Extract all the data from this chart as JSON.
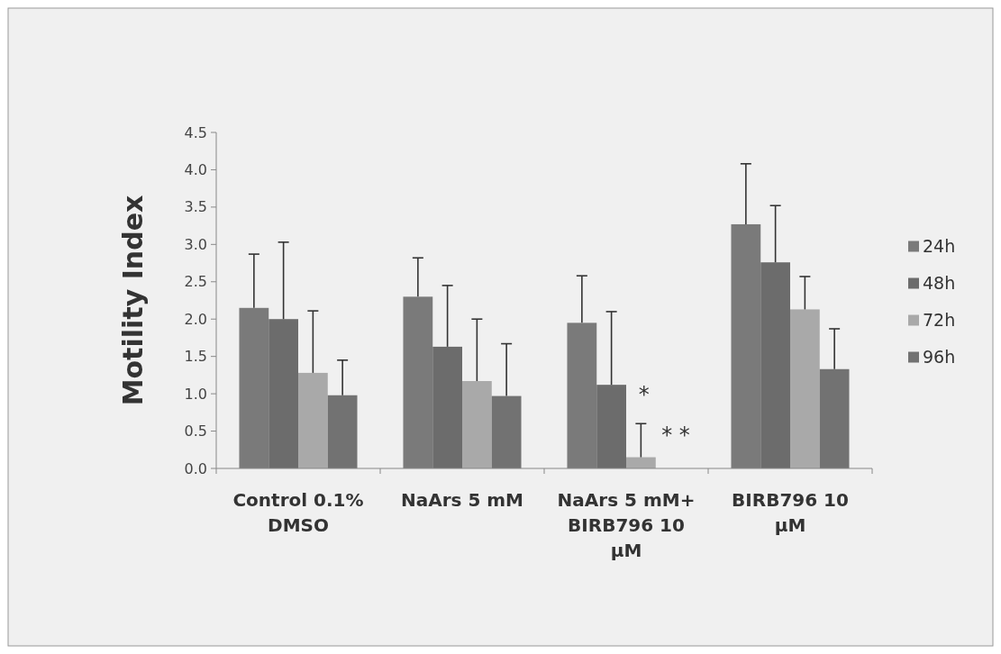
{
  "chart_data": {
    "type": "bar",
    "ylabel": "Motility Index",
    "categories": [
      "Control 0.1% DMSO",
      "NaArs 5 mM",
      "NaArs 5 mM+ BIRB796 10 μM",
      "BIRB796 10 μM"
    ],
    "series": [
      {
        "name": "24h",
        "color": "#7a7a7a",
        "values": [
          2.15,
          2.3,
          1.95,
          3.27
        ],
        "errors": [
          [
            2.15,
            2.87
          ],
          [
            2.3,
            2.82
          ],
          [
            1.95,
            2.58
          ],
          [
            3.27,
            4.08
          ]
        ]
      },
      {
        "name": "48h",
        "color": "#6c6c6c",
        "values": [
          2.0,
          1.63,
          1.12,
          2.76
        ],
        "errors": [
          [
            2.0,
            3.03
          ],
          [
            1.63,
            2.45
          ],
          [
            1.12,
            2.1
          ],
          [
            2.76,
            3.52
          ]
        ]
      },
      {
        "name": "72h",
        "color": "#a9a9a9",
        "values": [
          1.28,
          1.17,
          0.15,
          2.13
        ],
        "errors": [
          [
            1.28,
            2.11
          ],
          [
            1.17,
            2.0
          ],
          [
            0.15,
            0.6
          ],
          [
            2.13,
            2.57
          ]
        ]
      },
      {
        "name": "96h",
        "color": "#727272",
        "values": [
          0.98,
          0.97,
          0,
          1.33
        ],
        "errors": [
          [
            0.98,
            1.45
          ],
          [
            0.97,
            1.67
          ],
          null,
          [
            1.33,
            1.87
          ]
        ]
      }
    ],
    "ylim": [
      0,
      4.5
    ],
    "yticks": [
      {
        "value": 0,
        "label": "0.0"
      },
      {
        "value": 0.5,
        "label": "0.5"
      },
      {
        "value": 1,
        "label": "1.0"
      },
      {
        "value": 1.5,
        "label": "1.5"
      },
      {
        "value": 2,
        "label": "2.0"
      },
      {
        "value": 2.5,
        "label": "2.5"
      },
      {
        "value": 3,
        "label": "3.0"
      },
      {
        "value": 3.5,
        "label": "3.5"
      },
      {
        "value": 4,
        "label": "4.0"
      },
      {
        "value": 4.5,
        "label": "4.5"
      }
    ],
    "annotations": [
      {
        "text": "*",
        "x": "NaArs 5 mM+ BIRB796 10 μM",
        "y": 1.0
      },
      {
        "text": "* *",
        "x": "NaArs 5 mM+ BIRB796 10 μM",
        "y": 0.45
      }
    ],
    "grid": false,
    "legend": "right"
  }
}
